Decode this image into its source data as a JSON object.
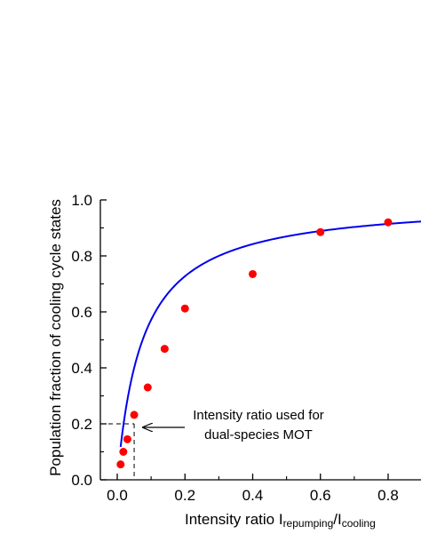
{
  "chart_data": {
    "type": "scatter",
    "title": "",
    "xlabel": {
      "main": "Intensity ratio I",
      "sub1": "repumping",
      "slash": "/I",
      "sub2": "cooling"
    },
    "ylabel": "Population fraction of cooling cycle states",
    "xlim": [
      -0.06,
      0.9
    ],
    "ylim": [
      0.0,
      1.0
    ],
    "x_ticks": [
      0.0,
      0.2,
      0.4,
      0.6,
      0.8
    ],
    "x_tick_labels": [
      "0.0",
      "0.2",
      "0.4",
      "0.6",
      "0.8"
    ],
    "y_ticks": [
      0.0,
      0.2,
      0.4,
      0.6,
      0.8,
      1.0
    ],
    "y_tick_labels": [
      "0.0",
      "0.2",
      "0.4",
      "0.6",
      "0.8",
      "1.0"
    ],
    "grid": false,
    "legend": "none",
    "series": [
      {
        "type": "scatter",
        "color": "#ff0000",
        "x": [
          0.01,
          0.018,
          0.03,
          0.05,
          0.09,
          0.14,
          0.2,
          0.4,
          0.6,
          0.8
        ],
        "y": [
          0.055,
          0.1,
          0.145,
          0.232,
          0.33,
          0.468,
          0.612,
          0.735,
          0.885,
          0.92
        ]
      },
      {
        "type": "line",
        "color": "#0000ee",
        "fit_function": "y = x / (x + 0.075)",
        "x_range": [
          0.01,
          0.9
        ]
      }
    ],
    "reference_lines": {
      "x": 0.05,
      "y": 0.2,
      "style": "dashed"
    },
    "annotation": {
      "lines": [
        "Intensity ratio used for",
        "dual-species MOT"
      ],
      "arrow_target": [
        0.05,
        0.2
      ]
    }
  }
}
